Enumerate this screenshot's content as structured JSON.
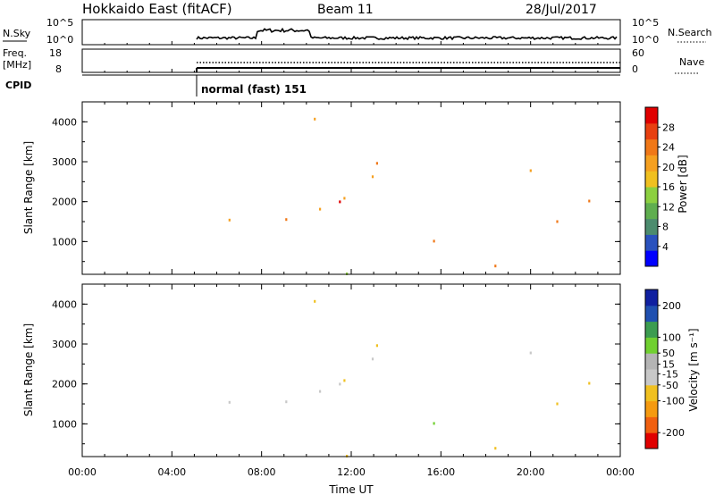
{
  "header": {
    "station": "Hokkaido East (fitACF)",
    "beam": "Beam 11",
    "date": "28/Jul/2017"
  },
  "noise_panel": {
    "left_label": "N.Sky",
    "left_ticks": [
      "10^5",
      "10^0"
    ],
    "right_ticks": [
      "10^5",
      "10^0"
    ],
    "right_label": "N.Search"
  },
  "freq_panel": {
    "left_label_1": "Freq.",
    "left_label_2": "[MHz]",
    "left_ticks": [
      "18",
      "8"
    ],
    "right_ticks": [
      "60",
      "0"
    ],
    "right_label": "Nave"
  },
  "cpid": {
    "label": "CPID",
    "program": "normal (fast) 151"
  },
  "colors": {
    "power": [
      "#0000ff",
      "#2a52be",
      "#4c8c6e",
      "#5fae4f",
      "#8cd040",
      "#f0c020",
      "#f5a020",
      "#f07818",
      "#e84010",
      "#e00000"
    ],
    "velocity": [
      "#e00000",
      "#f06010",
      "#f59a10",
      "#f0c020",
      "#c8c8c8",
      "#b4b4b4",
      "#70d030",
      "#3c9c50",
      "#2050b0",
      "#1020a0"
    ],
    "gray": "#c4c4c4"
  },
  "chart_data": [
    {
      "type": "heatmap",
      "name": "power",
      "ylabel": "Slant Range [km]",
      "yticks": [
        "4000",
        "3000",
        "2000",
        "1000"
      ],
      "ylim": [
        180,
        4500
      ],
      "xlim": [
        0,
        24
      ],
      "colorbar_label": "Power [dB]",
      "colorbar_ticks": [
        "28",
        "24",
        "20",
        "16",
        "12",
        "8",
        "4"
      ],
      "colorbar_range": [
        0,
        32
      ]
    },
    {
      "type": "heatmap",
      "name": "velocity",
      "ylabel": "Slant Range [km]",
      "yticks": [
        "4000",
        "3000",
        "2000",
        "1000"
      ],
      "ylim": [
        180,
        4500
      ],
      "xlim": [
        0,
        24
      ],
      "xlabel": "Time UT",
      "xticks": [
        "00:00",
        "04:00",
        "08:00",
        "12:00",
        "16:00",
        "20:00",
        "00:00"
      ],
      "colorbar_label": "Velocity [m s⁻¹]",
      "colorbar_ticks": [
        "200",
        "100",
        "50",
        "15",
        "-15",
        "-50",
        "-100",
        "-200"
      ],
      "colorbar_range": [
        -250,
        250
      ]
    }
  ]
}
